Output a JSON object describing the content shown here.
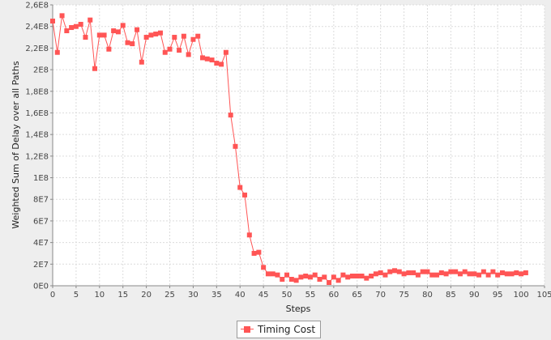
{
  "chart_data": {
    "type": "line",
    "xlabel": "Steps",
    "ylabel": "Weighted Sum of Delay over all Paths",
    "xlim": [
      0,
      105
    ],
    "ylim": [
      0,
      260000000
    ],
    "x_ticks": [
      0,
      5,
      10,
      15,
      20,
      25,
      30,
      35,
      40,
      45,
      50,
      55,
      60,
      65,
      70,
      75,
      80,
      85,
      90,
      95,
      100,
      105
    ],
    "y_ticks": [
      {
        "value": 0,
        "label": "0E0"
      },
      {
        "value": 20000000,
        "label": "2E7"
      },
      {
        "value": 40000000,
        "label": "4E7"
      },
      {
        "value": 60000000,
        "label": "6E7"
      },
      {
        "value": 80000000,
        "label": "8E7"
      },
      {
        "value": 100000000,
        "label": "1E8"
      },
      {
        "value": 120000000,
        "label": "1,2E8"
      },
      {
        "value": 140000000,
        "label": "1,4E8"
      },
      {
        "value": 160000000,
        "label": "1,6E8"
      },
      {
        "value": 180000000,
        "label": "1,8E8"
      },
      {
        "value": 200000000,
        "label": "2E8"
      },
      {
        "value": 220000000,
        "label": "2,2E8"
      },
      {
        "value": 240000000,
        "label": "2,4E8"
      },
      {
        "value": 260000000,
        "label": "2,6E8"
      }
    ],
    "grid": true,
    "legend_position": "bottom",
    "series": [
      {
        "name": "Timing Cost",
        "color": "#ff5555",
        "x": [
          0,
          1,
          2,
          3,
          4,
          5,
          6,
          7,
          8,
          9,
          10,
          11,
          12,
          13,
          14,
          15,
          16,
          17,
          18,
          19,
          20,
          21,
          22,
          23,
          24,
          25,
          26,
          27,
          28,
          29,
          30,
          31,
          32,
          33,
          34,
          35,
          36,
          37,
          38,
          39,
          40,
          41,
          42,
          43,
          44,
          45,
          46,
          47,
          48,
          49,
          50,
          51,
          52,
          53,
          54,
          55,
          56,
          57,
          58,
          59,
          60,
          61,
          62,
          63,
          64,
          65,
          66,
          67,
          68,
          69,
          70,
          71,
          72,
          73,
          74,
          75,
          76,
          77,
          78,
          79,
          80,
          81,
          82,
          83,
          84,
          85,
          86,
          87,
          88,
          89,
          90,
          91,
          92,
          93,
          94,
          95,
          96,
          97,
          98,
          99,
          100,
          101
        ],
        "values": [
          245000000,
          216000000,
          250000000,
          236000000,
          239000000,
          240000000,
          242000000,
          230000000,
          246000000,
          201000000,
          232000000,
          232000000,
          219000000,
          236000000,
          235000000,
          241000000,
          225000000,
          224000000,
          237000000,
          207000000,
          230000000,
          232000000,
          233000000,
          234000000,
          216000000,
          219000000,
          230000000,
          218000000,
          231000000,
          214000000,
          228000000,
          231000000,
          211000000,
          210000000,
          209000000,
          206000000,
          205000000,
          216000000,
          158000000,
          129000000,
          91000000,
          84000000,
          47000000,
          30000000,
          31000000,
          17000000,
          11000000,
          11000000,
          10000000,
          6000000,
          10000000,
          6000000,
          5000000,
          8000000,
          9000000,
          8000000,
          10000000,
          6000000,
          8000000,
          3000000,
          8000000,
          5000000,
          10000000,
          8000000,
          9000000,
          9000000,
          9000000,
          7000000,
          9000000,
          11000000,
          12000000,
          10000000,
          13000000,
          14000000,
          13000000,
          11000000,
          12000000,
          12000000,
          10000000,
          13000000,
          13000000,
          10000000,
          10000000,
          12000000,
          11000000,
          13000000,
          13000000,
          11000000,
          13000000,
          11000000,
          11000000,
          10000000,
          13000000,
          10000000,
          13000000,
          10000000,
          12000000,
          11000000,
          11000000,
          12000000,
          11000000,
          12000000
        ]
      }
    ]
  }
}
